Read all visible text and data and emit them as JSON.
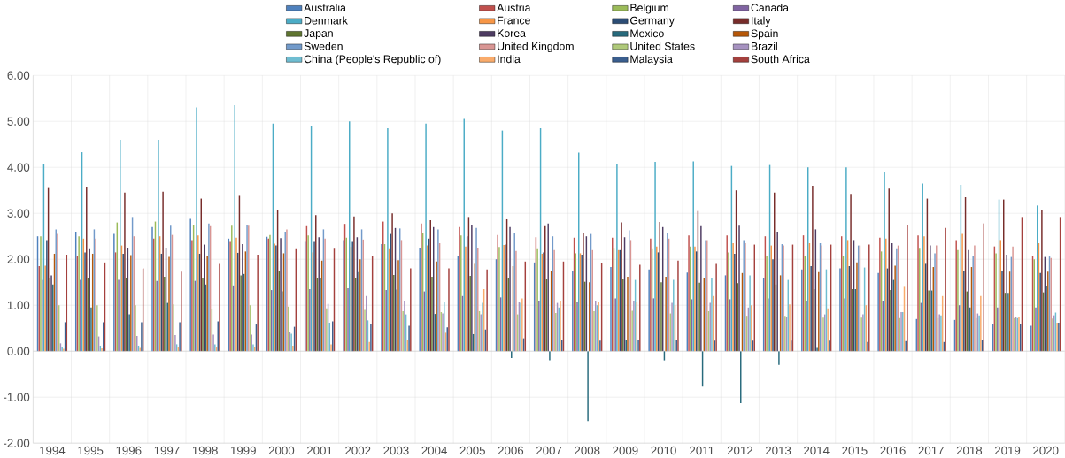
{
  "chart_data": {
    "type": "bar",
    "categories": [
      "1994",
      "1995",
      "1996",
      "1997",
      "1998",
      "1999",
      "2000",
      "2001",
      "2002",
      "2003",
      "2004",
      "2005",
      "2006",
      "2007",
      "2008",
      "2009",
      "2010",
      "2011",
      "2012",
      "2013",
      "2014",
      "2015",
      "2016",
      "2017",
      "2018",
      "2019",
      "2020"
    ],
    "ylim": [
      -2,
      6
    ],
    "yticks": [
      {
        "value": -2,
        "label": "-2.00"
      },
      {
        "value": -1,
        "label": "-1.00"
      },
      {
        "value": 0,
        "label": "0.00"
      },
      {
        "value": 1,
        "label": "1.00"
      },
      {
        "value": 2,
        "label": "2.00"
      },
      {
        "value": 3,
        "label": "3.00"
      },
      {
        "value": 4,
        "label": "4.00"
      },
      {
        "value": 5,
        "label": "5.00"
      },
      {
        "value": 6,
        "label": "6.00"
      }
    ],
    "grid": true,
    "legend": "top",
    "series": [
      {
        "name": "Australia",
        "color": "#4f81bd",
        "values": [
          2.5,
          2.6,
          2.55,
          2.7,
          2.88,
          2.45,
          2.49,
          2.38,
          2.4,
          2.33,
          2.25,
          2.07,
          2.0,
          1.93,
          1.75,
          1.83,
          1.78,
          1.71,
          1.65,
          1.6,
          1.78,
          1.8,
          1.7,
          0.7,
          0.68,
          0.6,
          0.55
        ]
      },
      {
        "name": "Austria",
        "color": "#c0504d",
        "values": [
          1.85,
          2.08,
          2.15,
          2.45,
          2.4,
          2.38,
          2.45,
          2.72,
          2.77,
          2.82,
          2.78,
          2.7,
          2.53,
          2.48,
          2.47,
          2.47,
          2.45,
          2.52,
          2.52,
          2.5,
          2.52,
          2.5,
          2.47,
          2.52,
          2.4,
          2.28,
          2.08
        ]
      },
      {
        "name": "Belgium",
        "color": "#9bbb59",
        "values": [
          2.5,
          2.5,
          2.8,
          2.82,
          2.75,
          2.73,
          2.53,
          2.52,
          2.47,
          2.33,
          2.57,
          2.52,
          2.27,
          2.22,
          2.13,
          2.23,
          2.22,
          2.28,
          2.15,
          2.08,
          2.08,
          2.08,
          2.17,
          2.23,
          2.2,
          2.13,
          2.0
        ]
      },
      {
        "name": "Canada",
        "color": "#8064a2",
        "values": [
          1.55,
          1.55,
          1.55,
          1.53,
          1.53,
          1.43,
          1.33,
          1.35,
          1.37,
          1.33,
          1.3,
          1.2,
          1.17,
          1.1,
          1.07,
          1.15,
          1.15,
          1.13,
          1.13,
          1.15,
          1.1,
          1.15,
          1.1,
          1.05,
          1.0,
          0.95,
          0.95
        ]
      },
      {
        "name": "Denmark",
        "color": "#4bacc6",
        "values": [
          4.07,
          4.33,
          4.6,
          4.6,
          5.3,
          5.35,
          4.95,
          4.9,
          5.0,
          4.85,
          4.95,
          5.05,
          4.8,
          4.85,
          4.32,
          4.07,
          4.12,
          4.13,
          4.03,
          4.05,
          4.0,
          4.0,
          3.9,
          3.65,
          3.62,
          3.3,
          3.17
        ]
      },
      {
        "name": "France",
        "color": "#f79646",
        "values": [
          1.86,
          2.45,
          2.3,
          2.5,
          2.52,
          2.47,
          2.34,
          2.15,
          2.27,
          2.22,
          2.3,
          2.28,
          2.31,
          2.12,
          2.13,
          2.2,
          2.28,
          2.28,
          2.35,
          2.3,
          2.35,
          2.4,
          2.45,
          2.5,
          2.55,
          2.4,
          2.35
        ]
      },
      {
        "name": "Germany",
        "color": "#2c4d75",
        "values": [
          2.4,
          2.15,
          2.12,
          2.12,
          2.12,
          2.14,
          2.3,
          2.38,
          2.38,
          2.55,
          2.45,
          2.5,
          2.32,
          2.15,
          2.1,
          2.2,
          2.15,
          2.17,
          2.12,
          2.0,
          1.85,
          1.85,
          1.8,
          1.9,
          1.75,
          1.75,
          1.7
        ]
      },
      {
        "name": "Italy",
        "color": "#772c2a",
        "values": [
          3.55,
          3.58,
          3.45,
          3.47,
          3.32,
          3.38,
          3.08,
          2.96,
          2.93,
          3.0,
          2.85,
          2.92,
          2.87,
          2.72,
          2.57,
          2.8,
          2.81,
          3.05,
          3.5,
          3.45,
          3.6,
          3.42,
          3.54,
          3.32,
          3.35,
          3.3,
          3.08
        ]
      },
      {
        "name": "Japan",
        "color": "#5f7530",
        "values": [
          1.6,
          1.6,
          1.6,
          1.62,
          1.6,
          1.65,
          1.75,
          1.6,
          1.6,
          1.66,
          1.62,
          1.64,
          1.6,
          1.58,
          1.51,
          1.56,
          1.5,
          1.49,
          1.48,
          1.45,
          1.35,
          1.35,
          1.33,
          1.32,
          1.3,
          1.27,
          1.28
        ]
      },
      {
        "name": "Korea",
        "color": "#4d3b62",
        "values": [
          1.65,
          2.22,
          2.25,
          2.25,
          2.32,
          2.33,
          2.46,
          2.48,
          2.48,
          2.68,
          2.7,
          2.75,
          2.7,
          2.78,
          2.5,
          2.48,
          2.7,
          2.72,
          2.73,
          2.6,
          2.65,
          2.4,
          2.35,
          2.3,
          2.2,
          2.1,
          2.05
        ]
      },
      {
        "name": "Mexico",
        "color": "#276a7c",
        "values": [
          1.45,
          0.95,
          0.8,
          1.05,
          1.45,
          1.68,
          1.3,
          1.6,
          1.72,
          1.34,
          0.81,
          0.37,
          -0.15,
          -0.2,
          -1.52,
          0.25,
          -0.2,
          -0.77,
          -1.13,
          -0.3,
          0.07,
          1.35,
          1.55,
          1.32,
          0.95,
          1.27,
          1.42
        ]
      },
      {
        "name": "Spain",
        "color": "#b65708",
        "values": [
          2.12,
          2.12,
          2.09,
          2.05,
          2.07,
          2.17,
          2.13,
          1.97,
          2.0,
          1.98,
          1.95,
          1.9,
          1.85,
          1.75,
          1.5,
          1.62,
          1.62,
          1.6,
          1.7,
          1.65,
          1.72,
          1.93,
          1.86,
          1.83,
          1.83,
          1.73,
          1.73
        ]
      },
      {
        "name": "Sweden",
        "color": "#729aca",
        "values": [
          2.65,
          2.65,
          2.92,
          2.73,
          2.78,
          2.75,
          2.6,
          2.65,
          2.65,
          2.67,
          2.65,
          2.68,
          2.58,
          2.5,
          2.55,
          2.63,
          2.56,
          2.4,
          2.4,
          2.33,
          2.35,
          2.3,
          2.22,
          2.13,
          2.08,
          2.05,
          2.06
        ]
      },
      {
        "name": "United Kingdom",
        "color": "#d99694",
        "values": [
          2.55,
          2.45,
          2.5,
          2.53,
          2.72,
          2.73,
          2.65,
          2.45,
          2.43,
          2.4,
          2.35,
          2.25,
          2.18,
          2.2,
          2.2,
          2.4,
          2.45,
          2.4,
          2.35,
          2.3,
          2.3,
          2.3,
          2.3,
          2.3,
          2.3,
          2.28,
          2.03
        ]
      },
      {
        "name": "United States",
        "color": "#afc97a",
        "values": [
          1.0,
          1.0,
          1.0,
          1.02,
          0.92,
          1.0,
          0.97,
          0.93,
          0.9,
          0.87,
          0.85,
          0.87,
          0.8,
          0.83,
          0.87,
          0.88,
          0.82,
          0.87,
          0.77,
          0.77,
          0.73,
          0.73,
          0.72,
          0.72,
          0.72,
          0.72,
          0.71
        ]
      },
      {
        "name": "Brazil",
        "color": "#a692c0",
        "values": [
          0.17,
          0.32,
          0.33,
          0.35,
          0.36,
          0.36,
          0.41,
          1.03,
          1.2,
          1.1,
          0.82,
          0.8,
          1.08,
          1.05,
          1.1,
          1.1,
          1.05,
          1.05,
          0.95,
          0.75,
          0.8,
          0.8,
          0.85,
          0.8,
          0.82,
          0.75,
          0.78
        ]
      },
      {
        "name": "China (People's Republic of)",
        "color": "#6fbdd1",
        "values": [
          0.1,
          0.12,
          0.12,
          0.15,
          0.15,
          0.15,
          0.38,
          0.62,
          0.67,
          0.8,
          1.08,
          1.05,
          1.05,
          0.95,
          1.0,
          1.55,
          1.55,
          1.6,
          1.65,
          1.55,
          1.78,
          1.82,
          0.85,
          0.78,
          0.78,
          0.72,
          0.84
        ]
      },
      {
        "name": "India",
        "color": "#f9ab6b",
        "values": [
          0.05,
          0.06,
          0.07,
          0.08,
          0.08,
          0.1,
          0.12,
          0.15,
          0.2,
          0.25,
          0.4,
          1.35,
          1.15,
          1.1,
          1.08,
          1.07,
          1.0,
          1.2,
          1.0,
          1.02,
          0.93,
          1.0,
          1.4,
          1.2,
          1.2,
          0.75,
          0.62
        ]
      },
      {
        "name": "Malaysia",
        "color": "#3a5e8e",
        "values": [
          0.63,
          0.63,
          0.63,
          0.63,
          0.65,
          0.58,
          0.53,
          0.65,
          0.58,
          0.55,
          0.52,
          0.47,
          0.28,
          0.25,
          0.23,
          0.25,
          0.24,
          0.23,
          0.23,
          0.23,
          0.23,
          0.2,
          0.22,
          0.2,
          0.25,
          0.6,
          0.62
        ]
      },
      {
        "name": "South Africa",
        "color": "#a4403d",
        "values": [
          2.1,
          1.93,
          1.8,
          1.73,
          1.9,
          2.1,
          2.22,
          2.23,
          2.08,
          1.8,
          1.8,
          1.78,
          1.95,
          1.95,
          1.92,
          1.88,
          1.97,
          1.9,
          2.32,
          2.32,
          2.32,
          2.32,
          2.75,
          2.68,
          2.78,
          2.92,
          2.92
        ]
      }
    ]
  }
}
